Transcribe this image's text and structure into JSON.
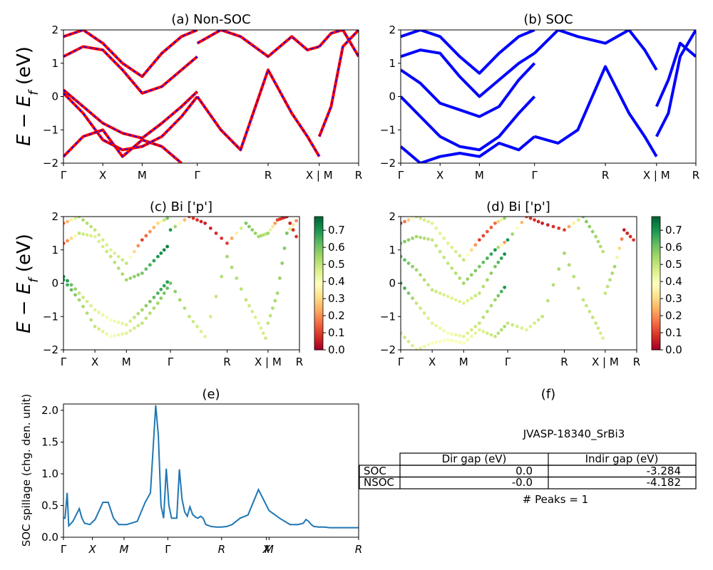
{
  "figure": {
    "y_label_text": "E − E",
    "y_label_sub": "f",
    "y_label_unit": " (eV)"
  },
  "panels": {
    "a": {
      "title": "(a) Non-SOC"
    },
    "b": {
      "title": "(b) SOC"
    },
    "c": {
      "title": "(c)  Bi ['p']"
    },
    "d": {
      "title": "(d) Bi ['p']"
    },
    "e": {
      "title": "(e)",
      "ylabel": "SOC spillage (chg. den. unit)"
    },
    "f": {
      "title": "(f)"
    }
  },
  "colors": {
    "nonsoc_red": "#ff0000",
    "nonsoc_blue_dash": "#0000ff",
    "soc_blue": "#0000ff",
    "spillage_line": "#1f77b4",
    "cmap": "RdYlGn"
  },
  "band_ticks": {
    "labels": [
      "Γ",
      "X",
      "M",
      "Γ",
      "R",
      "X | M",
      "R"
    ],
    "yticks": [
      "2",
      "1",
      "0",
      "−1",
      "−2"
    ]
  },
  "colorbar_ticks": [
    "0.7",
    "0.6",
    "0.5",
    "0.4",
    "0.3",
    "0.2",
    "0.1",
    "0.0"
  ],
  "table": {
    "title": "JVASP-18340_SrBi3",
    "headers": [
      "",
      "Dir gap (eV)",
      "Indir gap (eV)"
    ],
    "rows": [
      [
        "SOC",
        "0.0",
        "-3.284"
      ],
      [
        "NSOC",
        "-0.0",
        "-4.182"
      ]
    ],
    "peaks": "# Peaks = 1"
  },
  "chart_data": [
    {
      "type": "line",
      "title": "(a) Non-SOC",
      "ylabel": "E − E_f (eV)",
      "xticks": [
        "Γ",
        "X",
        "M",
        "Γ",
        "R",
        "X | M",
        "R"
      ],
      "ylim": [
        -2,
        2
      ],
      "x_kpath": [
        0,
        1,
        2,
        3.4,
        5.2,
        6.5,
        7.5
      ],
      "series": [
        {
          "x": [
            0,
            0.5,
            1,
            1.5,
            2,
            2.5,
            3,
            3.4
          ],
          "y": [
            0.2,
            -0.3,
            -0.8,
            -1.1,
            -1.25,
            -0.8,
            -0.3,
            0.15
          ]
        },
        {
          "x": [
            0,
            0.5,
            1,
            1.5,
            2,
            2.5,
            3,
            3.4
          ],
          "y": [
            0.1,
            -0.5,
            -1.3,
            -1.6,
            -1.5,
            -1.2,
            -0.6,
            0.0
          ]
        },
        {
          "x": [
            0,
            0.5,
            1,
            1.5,
            2,
            2.5,
            3,
            3.4
          ],
          "y": [
            1.2,
            1.5,
            1.4,
            0.8,
            0.1,
            0.3,
            0.8,
            1.2
          ]
        },
        {
          "x": [
            0,
            0.5,
            1,
            1.5,
            2,
            2.5,
            3,
            3.4
          ],
          "y": [
            1.8,
            2.0,
            1.6,
            1.0,
            0.6,
            1.3,
            1.8,
            2.0
          ]
        },
        {
          "x": [
            0,
            0.5,
            1,
            1.5,
            2,
            2.5,
            3
          ],
          "y": [
            -1.8,
            -1.2,
            -1.0,
            -1.8,
            -1.3,
            -1.5,
            -2.0
          ]
        },
        {
          "x": [
            3.4,
            4,
            4.5,
            5.2,
            5.8,
            6.2,
            6.5
          ],
          "y": [
            0.0,
            -1.0,
            -1.6,
            0.8,
            -0.5,
            -1.2,
            -1.8
          ]
        },
        {
          "x": [
            3.4,
            4,
            4.5,
            5.2,
            5.8,
            6.2,
            6.5
          ],
          "y": [
            1.6,
            2.0,
            1.8,
            1.2,
            1.8,
            1.4,
            1.5
          ]
        },
        {
          "x": [
            6.5,
            6.8,
            7.1,
            7.5
          ],
          "y": [
            -1.2,
            -0.3,
            1.5,
            2.0
          ]
        },
        {
          "x": [
            6.5,
            6.8,
            7.1,
            7.5
          ],
          "y": [
            1.5,
            1.9,
            2.0,
            1.2
          ]
        }
      ]
    },
    {
      "type": "line",
      "title": "(b) SOC",
      "ylabel": "",
      "xticks": [
        "Γ",
        "X",
        "M",
        "Γ",
        "R",
        "X | M",
        "R"
      ],
      "ylim": [
        -2,
        2
      ],
      "x_kpath": [
        0,
        1,
        2,
        3.4,
        5.2,
        6.5,
        7.5
      ],
      "series": [
        {
          "x": [
            0,
            0.5,
            1,
            1.5,
            2,
            2.5,
            3,
            3.4
          ],
          "y": [
            0.0,
            -0.6,
            -1.2,
            -1.5,
            -1.6,
            -1.2,
            -0.5,
            0.0
          ]
        },
        {
          "x": [
            0,
            0.5,
            1,
            1.5,
            2,
            2.5,
            3,
            3.4
          ],
          "y": [
            0.8,
            0.4,
            -0.2,
            -0.4,
            -0.6,
            -0.3,
            0.5,
            1.0
          ]
        },
        {
          "x": [
            0,
            0.5,
            1,
            1.5,
            2,
            2.5,
            3,
            3.4
          ],
          "y": [
            1.2,
            1.4,
            1.3,
            0.6,
            0.0,
            0.5,
            1.0,
            1.3
          ]
        },
        {
          "x": [
            0,
            0.5,
            1,
            1.5,
            2,
            2.5,
            3,
            3.4
          ],
          "y": [
            1.8,
            2.0,
            1.8,
            1.2,
            0.7,
            1.3,
            1.8,
            2.0
          ]
        },
        {
          "x": [
            0,
            0.5,
            1,
            1.5,
            2,
            2.5,
            3,
            3.4
          ],
          "y": [
            -1.5,
            -2.0,
            -1.8,
            -1.7,
            -1.8,
            -1.4,
            -1.6,
            -1.2
          ]
        },
        {
          "x": [
            3.4,
            4,
            4.5,
            5.2,
            5.8,
            6.2,
            6.5
          ],
          "y": [
            -1.2,
            -1.4,
            -1.0,
            0.9,
            -0.5,
            -1.2,
            -1.8
          ]
        },
        {
          "x": [
            3.4,
            4,
            4.5,
            5.2,
            5.8,
            6.2,
            6.5
          ],
          "y": [
            1.3,
            2.0,
            1.8,
            1.6,
            2.0,
            1.4,
            0.8
          ]
        },
        {
          "x": [
            6.5,
            6.8,
            7.1,
            7.5
          ],
          "y": [
            -0.3,
            0.5,
            1.6,
            1.2
          ]
        },
        {
          "x": [
            6.5,
            6.8,
            7.1,
            7.5
          ],
          "y": [
            -1.2,
            -0.5,
            1.2,
            2.0
          ]
        }
      ]
    },
    {
      "type": "scatter",
      "title": "(c)  Bi ['p']",
      "ylabel": "E − E_f (eV)",
      "xticks": [
        "Γ",
        "X",
        "M",
        "Γ",
        "R",
        "X | M",
        "R"
      ],
      "ylim": [
        -2,
        2
      ],
      "colorbar_range": [
        0.0,
        0.78
      ],
      "series": [
        {
          "x": [
            0,
            0.5,
            1,
            1.5,
            2,
            2.5,
            3,
            3.4
          ],
          "y": [
            0.2,
            -0.3,
            -0.8,
            -1.1,
            -1.25,
            -0.8,
            -0.3,
            0.15
          ],
          "c": [
            0.75,
            0.5,
            0.45,
            0.4,
            0.45,
            0.55,
            0.65,
            0.7
          ]
        },
        {
          "x": [
            0,
            0.5,
            1,
            1.5,
            2,
            2.5,
            3,
            3.4
          ],
          "y": [
            0.1,
            -0.5,
            -1.3,
            -1.6,
            -1.5,
            -1.2,
            -0.6,
            0.0
          ],
          "c": [
            0.7,
            0.55,
            0.5,
            0.4,
            0.45,
            0.5,
            0.55,
            0.65
          ]
        },
        {
          "x": [
            0,
            0.5,
            1,
            1.5,
            2,
            2.5,
            3,
            3.4
          ],
          "y": [
            1.2,
            1.5,
            1.4,
            0.8,
            0.1,
            0.3,
            0.8,
            1.2
          ],
          "c": [
            0.1,
            0.5,
            0.45,
            0.5,
            0.55,
            0.6,
            0.7,
            0.75
          ]
        },
        {
          "x": [
            0,
            0.5,
            1,
            1.5,
            2,
            2.5,
            3,
            3.4
          ],
          "y": [
            1.8,
            2.0,
            1.6,
            1.0,
            0.6,
            1.3,
            1.8,
            2.0
          ],
          "c": [
            0.15,
            0.55,
            0.5,
            0.45,
            0.5,
            0.1,
            0.3,
            0.7
          ]
        },
        {
          "x": [
            3.4,
            4,
            4.5,
            5.2,
            5.8,
            6.2,
            6.5
          ],
          "y": [
            0.0,
            -1.0,
            -1.6,
            0.8,
            -0.5,
            -1.2,
            -1.8
          ],
          "c": [
            0.6,
            0.5,
            0.45,
            0.55,
            0.5,
            0.45,
            0.5
          ]
        },
        {
          "x": [
            3.4,
            4,
            4.5,
            5.2,
            5.8,
            6.2,
            6.5
          ],
          "y": [
            1.6,
            2.0,
            1.8,
            1.2,
            1.8,
            1.4,
            1.5
          ],
          "c": [
            0.7,
            0.1,
            0.05,
            0.1,
            0.6,
            0.55,
            0.5
          ]
        },
        {
          "x": [
            6.5,
            6.8,
            7.1,
            7.5
          ],
          "y": [
            -1.2,
            -0.3,
            1.5,
            2.0
          ],
          "c": [
            0.5,
            0.55,
            0.6,
            0.05
          ]
        },
        {
          "x": [
            6.5,
            6.8,
            7.1,
            7.5
          ],
          "y": [
            1.5,
            1.9,
            2.0,
            1.2
          ],
          "c": [
            0.55,
            0.1,
            0.05,
            0.1
          ]
        }
      ]
    },
    {
      "type": "scatter",
      "title": "(d) Bi ['p']",
      "ylabel": "",
      "xticks": [
        "Γ",
        "X",
        "M",
        "Γ",
        "R",
        "X | M",
        "R"
      ],
      "ylim": [
        -2,
        2
      ],
      "colorbar_range": [
        0.0,
        0.78
      ],
      "series": [
        {
          "x": [
            0,
            0.5,
            1,
            1.5,
            2,
            2.5,
            3,
            3.4
          ],
          "y": [
            0.0,
            -0.6,
            -1.2,
            -1.5,
            -1.6,
            -1.2,
            -0.5,
            0.0
          ],
          "c": [
            0.7,
            0.5,
            0.45,
            0.4,
            0.45,
            0.5,
            0.55,
            0.75
          ]
        },
        {
          "x": [
            0,
            0.5,
            1,
            1.5,
            2,
            2.5,
            3,
            3.4
          ],
          "y": [
            0.8,
            0.4,
            -0.2,
            -0.4,
            -0.6,
            -0.3,
            0.5,
            1.0
          ],
          "c": [
            0.65,
            0.55,
            0.5,
            0.45,
            0.45,
            0.5,
            0.6,
            0.75
          ]
        },
        {
          "x": [
            0,
            0.5,
            1,
            1.5,
            2,
            2.5,
            3,
            3.4
          ],
          "y": [
            1.2,
            1.4,
            1.3,
            0.6,
            0.0,
            0.5,
            1.0,
            1.3
          ],
          "c": [
            0.6,
            0.55,
            0.5,
            0.5,
            0.55,
            0.6,
            0.7,
            0.05
          ]
        },
        {
          "x": [
            0,
            0.5,
            1,
            1.5,
            2,
            2.5,
            3,
            3.4
          ],
          "y": [
            1.8,
            2.0,
            1.8,
            1.2,
            0.7,
            1.3,
            1.8,
            2.0
          ],
          "c": [
            0.05,
            0.5,
            0.45,
            0.45,
            0.5,
            0.1,
            0.15,
            0.7
          ]
        },
        {
          "x": [
            0,
            0.5,
            1,
            1.5,
            2,
            2.5,
            3,
            3.4
          ],
          "y": [
            -1.5,
            -2.0,
            -1.8,
            -1.7,
            -1.8,
            -1.4,
            -1.6,
            -1.2
          ],
          "c": [
            0.5,
            0.45,
            0.4,
            0.4,
            0.4,
            0.45,
            0.5,
            0.55
          ]
        },
        {
          "x": [
            3.4,
            4,
            4.5,
            5.2,
            5.8,
            6.2,
            6.5
          ],
          "y": [
            -1.2,
            -1.4,
            -1.0,
            0.9,
            -0.5,
            -1.2,
            -1.8
          ],
          "c": [
            0.5,
            0.45,
            0.5,
            0.55,
            0.5,
            0.5,
            0.45
          ]
        },
        {
          "x": [
            3.4,
            4,
            4.5,
            5.2,
            5.8,
            6.2,
            6.5
          ],
          "y": [
            1.3,
            2.0,
            1.8,
            1.6,
            2.0,
            1.4,
            0.8
          ],
          "c": [
            0.7,
            0.1,
            0.05,
            0.1,
            0.6,
            0.55,
            0.5
          ]
        },
        {
          "x": [
            6.5,
            6.8,
            7.1,
            7.5
          ],
          "y": [
            -0.3,
            0.5,
            1.6,
            1.2
          ],
          "c": [
            0.5,
            0.55,
            0.05,
            0.1
          ]
        }
      ]
    },
    {
      "type": "line",
      "title": "(e)",
      "ylabel": "SOC spillage (chg. den. unit)",
      "xticks": [
        "Γ",
        "X",
        "M",
        "Γ",
        "R",
        "X",
        "M",
        "R"
      ],
      "ylim": [
        0,
        2.1
      ],
      "yticks": [
        0.0,
        0.5,
        1.0,
        1.5,
        2.0
      ],
      "x": [
        0,
        0.03,
        0.07,
        0.1,
        0.18,
        0.3,
        0.35,
        0.4,
        0.5,
        0.6,
        0.75,
        0.85,
        0.95,
        1.05,
        1.2,
        1.4,
        1.55,
        1.65,
        1.75,
        1.8,
        1.85,
        1.9,
        1.95,
        2.0,
        2.05,
        2.1,
        2.15,
        2.2,
        2.25,
        2.3,
        2.35,
        2.4,
        2.45,
        2.5,
        2.55,
        2.6,
        2.65,
        2.7,
        2.8,
        2.9,
        3.0,
        3.1,
        3.2,
        3.35,
        3.5,
        3.7,
        3.9,
        4.1,
        4.3,
        4.45,
        4.55,
        4.6,
        4.65,
        4.7,
        4.75,
        4.85,
        4.95,
        5.05,
        5.15,
        5.25,
        5.3,
        5.4,
        5.5,
        5.6
      ],
      "y": [
        0.3,
        0.3,
        0.7,
        0.18,
        0.25,
        0.45,
        0.3,
        0.22,
        0.2,
        0.28,
        0.55,
        0.55,
        0.3,
        0.2,
        0.2,
        0.25,
        0.55,
        0.7,
        2.08,
        1.6,
        0.5,
        0.3,
        1.08,
        0.5,
        0.3,
        0.3,
        0.3,
        1.07,
        0.6,
        0.4,
        0.33,
        0.48,
        0.36,
        0.32,
        0.3,
        0.33,
        0.3,
        0.2,
        0.17,
        0.16,
        0.16,
        0.17,
        0.2,
        0.3,
        0.35,
        0.75,
        0.42,
        0.3,
        0.2,
        0.2,
        0.22,
        0.28,
        0.25,
        0.2,
        0.17,
        0.16,
        0.16,
        0.15,
        0.15,
        0.15,
        0.15,
        0.15,
        0.15,
        0.15
      ]
    }
  ]
}
